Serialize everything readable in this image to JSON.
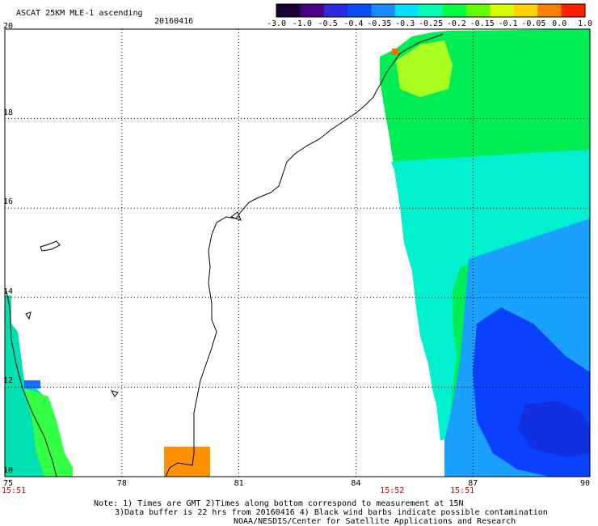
{
  "title": "ASCAT 25KM MLE-1 ascending",
  "date": "20160416",
  "colorbar": {
    "labels": [
      "-3.0",
      "-1.0",
      "-0.5",
      "-0.4",
      "-0.35",
      "-0.3",
      "-0.25",
      "-0.2",
      "-0.15",
      "-0.1",
      "-0.05",
      "0.0",
      "1.0"
    ],
    "colors": [
      "#1a0033",
      "#4b0082",
      "#2a2ae0",
      "#0a4cff",
      "#1a8cff",
      "#00e0ff",
      "#00ffb0",
      "#00ff40",
      "#66ff00",
      "#d8ff00",
      "#ffd000",
      "#ff8000",
      "#ff2000"
    ]
  },
  "map": {
    "lat_labels": [
      "20",
      "18",
      "16",
      "14",
      "12",
      "10"
    ],
    "lon_labels": [
      "75",
      "78",
      "81",
      "84",
      "87",
      "90"
    ],
    "time_labels": [
      {
        "lon": 75,
        "text": "15:51"
      },
      {
        "lon": 84.7,
        "text": "15:52"
      },
      {
        "lon": 86.5,
        "text": "15:51"
      }
    ]
  },
  "notes": {
    "line1": "Note: 1) Times are GMT 2)Times along bottom correspond to measurement at 15N",
    "line2": "3)Data buffer is 22 hrs from 20160416 4) Black wind barbs indicate possible contamination",
    "line3": "NOAA/NESDIS/Center for Satellite Applications and Research"
  }
}
